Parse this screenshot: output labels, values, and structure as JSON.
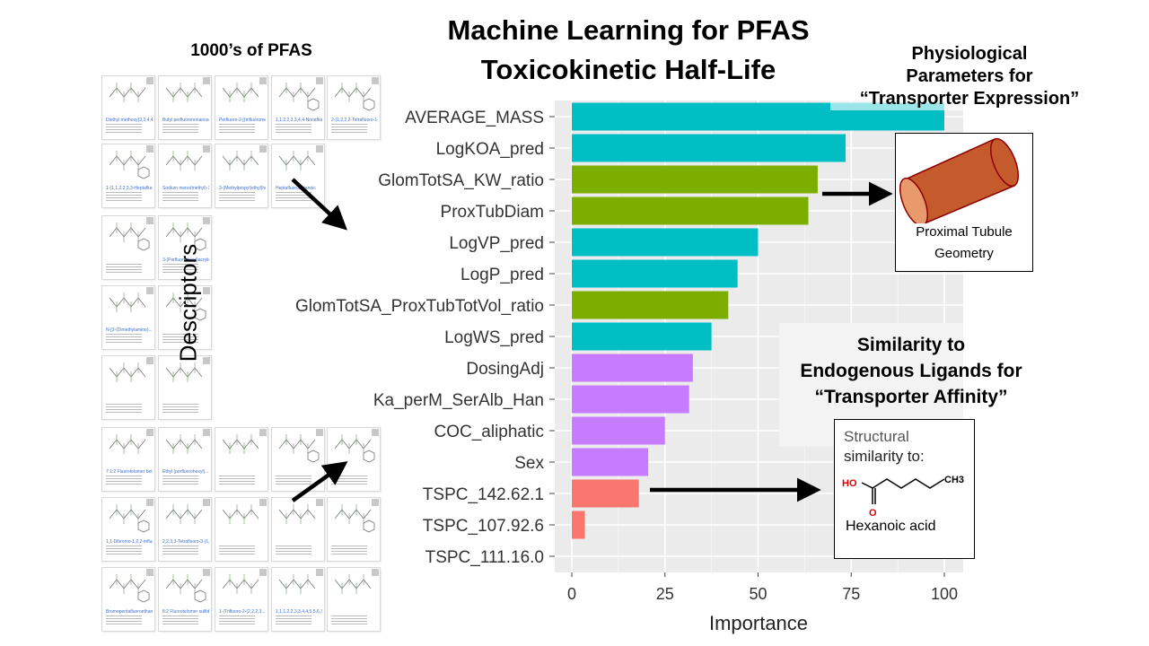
{
  "title_line1": "Machine Learning for PFAS",
  "title_line2": "Toxicokinetic Half-Life",
  "pfas_label": "1000’s of PFAS",
  "descriptors_label": "Descriptors",
  "physiological": {
    "line1": "Physiological",
    "line2": "Parameters for",
    "line3": "“Transporter Expression”",
    "box_label_line1": "Proximal Tubule",
    "box_label_line2": "Geometry"
  },
  "similarity": {
    "line1": "Similarity to",
    "line2": "Endogenous Ligands for",
    "line3": "“Transporter Affinity”",
    "box_line1": "Structural",
    "box_line2": "similarity to:",
    "molecule_name": "Hexanoic acid",
    "atom_o_h": "HO",
    "atom_o": "O",
    "atom_ch3": "CH3"
  },
  "chart_data": {
    "type": "bar",
    "orientation": "horizontal",
    "xlabel": "Importance",
    "xlim": [
      0,
      105
    ],
    "xticks": [
      0,
      25,
      50,
      75,
      100
    ],
    "grid": true,
    "categories": [
      "AVERAGE_MASS",
      "LogKOA_pred",
      "GlomTotSA_KW_ratio",
      "ProxTubDiam",
      "LogVP_pred",
      "LogP_pred",
      "GlomTotSA_ProxTubTotVol_ratio",
      "LogWS_pred",
      "DosingAdj",
      "Ka_perM_SerAlb_Han",
      "COC_aliphatic",
      "Sex",
      "TSPC_142.62.1",
      "TSPC_107.92.6",
      "TSPC_111.16.0"
    ],
    "values": [
      100,
      73.5,
      66,
      63.5,
      50,
      44.5,
      42,
      37.5,
      32.5,
      31.5,
      25,
      20.5,
      18,
      3.5,
      0
    ],
    "colors": [
      "#00BFC4",
      "#00BFC4",
      "#7CAE00",
      "#7CAE00",
      "#00BFC4",
      "#00BFC4",
      "#7CAE00",
      "#00BFC4",
      "#C77CFF",
      "#C77CFF",
      "#C77CFF",
      "#C77CFF",
      "#F8766D",
      "#F8766D",
      "#F8766D"
    ]
  },
  "tiles": [
    {
      "name": "Diethyl methoxy(3,3,4,4,5..."
    },
    {
      "name": "Butyl perfluorononanoate"
    },
    {
      "name": "Perfluoro-2-[(trifluorometh..."
    },
    {
      "name": "1,1,2,2,3,3,4,4-Nonafluoro..."
    },
    {
      "name": "2-(1,2,2,2-Tetrafluoro-1-..."
    },
    {
      "name": "1-(1,1,2,2,3,3-Heptafluor..."
    },
    {
      "name": "Sodium mono(triethyl)-3-p..."
    },
    {
      "name": "3-(Methylpropyl)ethyl)hept..."
    },
    {
      "name": "Heptafluorobutanoic"
    },
    {
      "name": ""
    },
    {
      "name": "3-(Perfluorodecyl)acrylic..."
    },
    {
      "name": "N-[3-(Dimethylamino)..."
    },
    {
      "name": ""
    },
    {
      "name": ""
    },
    {
      "name": ""
    },
    {
      "name": "7:1:2 Fluorotelomer betai..."
    },
    {
      "name": "Ethyl (perfluorohexyl)..."
    },
    {
      "name": ""
    },
    {
      "name": ""
    },
    {
      "name": ""
    },
    {
      "name": "1,1-Dibromo-1,2,2-trifluor..."
    },
    {
      "name": "2,2,3,3-Tetrafluoro-3-(1,1..."
    },
    {
      "name": ""
    },
    {
      "name": ""
    },
    {
      "name": ""
    },
    {
      "name": "Bromopentafluoroethane"
    },
    {
      "name": "8:2 Fluorotelomer sulfide..."
    },
    {
      "name": "1-(Trifluoro-2-(2,2,2,3..."
    },
    {
      "name": "1,1,1,2,2,3,3,4,4,5,5,6,7..."
    },
    {
      "name": ""
    },
    {
      "name": "Perfluoromethylbutyl)cy..."
    },
    {
      "name": "2,2,3,3-Tetrafluoro-N-(fluo..."
    },
    {
      "name": "2-Propenoic acid, 2-meth..."
    },
    {
      "name": "1,1,2,2,3,3,4,4-Nonafluoro..."
    },
    {
      "name": "1,2-Bis(perfluorohexyl)et..."
    },
    {
      "name": "2-(Methyl-(trifluoromethyl)..."
    },
    {
      "name": "Acetic acid, 2-(difluoro..."
    },
    {
      "name": "N-(Perfluoro-1-oxonony..."
    },
    {
      "name": "Bis(perfluorodecyl)ethyl..."
    },
    {
      "name": "N-[3-(Dimethylamino)pr..."
    }
  ]
}
